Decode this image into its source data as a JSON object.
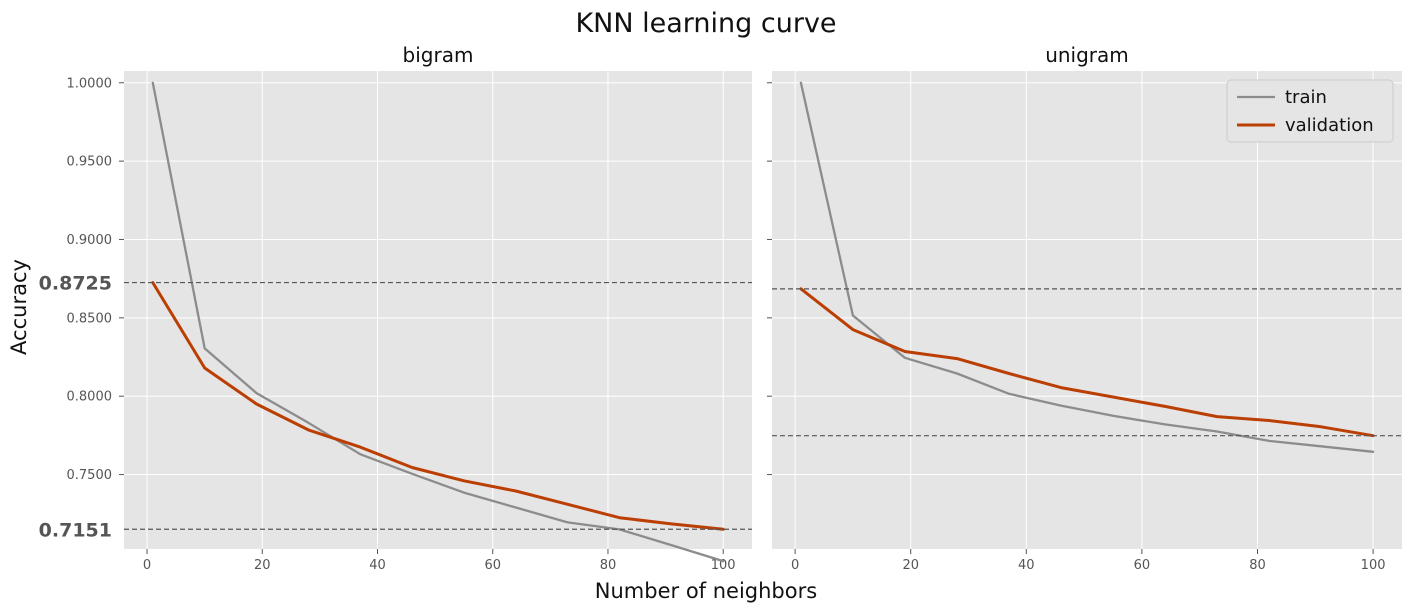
{
  "chart_data": {
    "type": "line",
    "title": "KNN learning curve",
    "xlabel": "Number of neighbors",
    "ylabel": "Accuracy",
    "xlim": [
      -4,
      105
    ],
    "ylim": [
      0.7025,
      1.0075
    ],
    "x_ticks": [
      "0",
      "20",
      "40",
      "60",
      "80",
      "100"
    ],
    "y_ticks": [
      "1.0000",
      "0.9500",
      "0.9000",
      "0.8500",
      "0.8000",
      "0.7500"
    ],
    "grid": true,
    "legend_placement": "top-right",
    "colors": {
      "train": "#8c8c8c",
      "validation": "#bb3e03",
      "plot_bg": "#e5e5e5",
      "grid": "#ffffff",
      "ref_line": "#555555"
    },
    "panels": [
      {
        "title": "bigram",
        "x": [
          1,
          10,
          19,
          28,
          37,
          46,
          55,
          64,
          73,
          82,
          91,
          100
        ],
        "series": [
          {
            "name": "train",
            "values": [
              1.0,
              0.8305,
              0.802,
              0.783,
              0.763,
              0.7505,
              0.7385,
              0.729,
              0.7195,
              0.715,
              0.705,
              0.6948
            ]
          },
          {
            "name": "validation",
            "values": [
              0.8725,
              0.818,
              0.795,
              0.7785,
              0.7675,
              0.7545,
              0.746,
              0.7395,
              0.731,
              0.7225,
              0.7185,
              0.7151
            ]
          }
        ],
        "ref_lines": [
          0.8725,
          0.7151
        ],
        "ref_labels": [
          "0.8725",
          "0.7151"
        ]
      },
      {
        "title": "unigram",
        "x": [
          1,
          10,
          19,
          28,
          37,
          46,
          55,
          64,
          73,
          82,
          91,
          100
        ],
        "series": [
          {
            "name": "train",
            "values": [
              1.0,
              0.8515,
              0.8245,
              0.8145,
              0.8015,
              0.794,
              0.7875,
              0.782,
              0.7775,
              0.7715,
              0.768,
              0.7645
            ]
          },
          {
            "name": "validation",
            "values": [
              0.8685,
              0.8425,
              0.8285,
              0.824,
              0.8145,
              0.8055,
              0.7995,
              0.7935,
              0.787,
              0.7845,
              0.7805,
              0.7748
            ]
          }
        ],
        "ref_lines": [
          0.8685,
          0.7748
        ],
        "ref_labels": []
      }
    ]
  }
}
